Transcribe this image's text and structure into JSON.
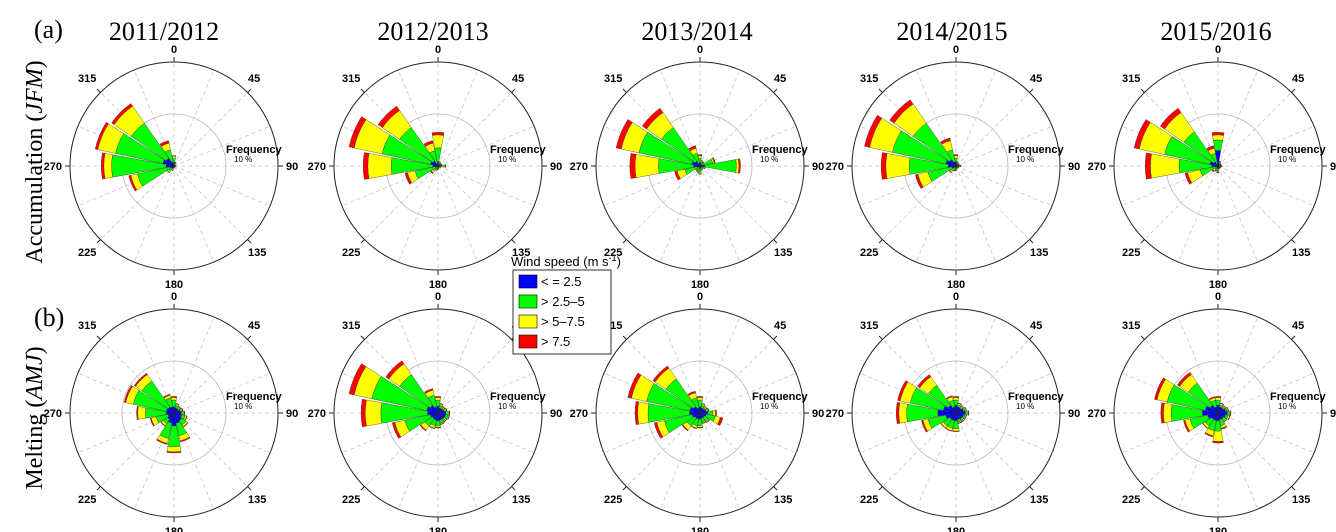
{
  "panels": {
    "a": "(a)",
    "b": "(b)"
  },
  "years": [
    "2011/2012",
    "2012/2013",
    "2013/2014",
    "2014/2015",
    "2015/2016"
  ],
  "rows": [
    {
      "id": "accumulation",
      "label_main": "Accumulation",
      "label_paren": "JFM"
    },
    {
      "id": "melting",
      "label_main": "Melting",
      "label_paren": "AMJ"
    }
  ],
  "compass_labels": [
    "0",
    "45",
    "90",
    "135",
    "180",
    "225",
    "270",
    "315"
  ],
  "frequency_label": "Frequency",
  "frequency_ring_label": "10 %",
  "legend": {
    "title": "Wind speed (m s",
    "title_sup": "-1",
    "title_close": ")",
    "bins": [
      {
        "label": "< = 2.5",
        "color": "#0000ff"
      },
      {
        "label": "> 2.5–5",
        "color": "#00ff00"
      },
      {
        "label": "> 5–7.5",
        "color": "#ffff00"
      },
      {
        "label": "> 7.5",
        "color": "#ff0000"
      }
    ]
  },
  "chart_data": [
    {
      "type": "windrose",
      "title": "2011/2012",
      "season": "Accumulation (JFM)",
      "directions": [
        0,
        22.5,
        45,
        67.5,
        90,
        112.5,
        135,
        157.5,
        180,
        202.5,
        225,
        247.5,
        270,
        292.5,
        315,
        337.5
      ],
      "bins_cumulative_pct": [
        [
          0.6,
          0.3,
          0.2,
          0.1,
          0.2,
          0.1,
          0.1,
          0.1,
          0.2,
          0.3,
          0.5,
          0.8,
          1.5,
          2.2,
          1.8,
          0.8
        ],
        [
          1.5,
          0.5,
          0.3,
          0.2,
          0.3,
          0.2,
          0.2,
          0.2,
          0.3,
          0.6,
          1.2,
          7.2,
          12.0,
          11.5,
          10.0,
          3.2
        ],
        [
          1.9,
          0.7,
          0.4,
          0.3,
          0.4,
          0.3,
          0.3,
          0.3,
          0.4,
          0.8,
          1.5,
          8.5,
          13.5,
          15.0,
          14.0,
          4.5
        ],
        [
          2.0,
          0.8,
          0.4,
          0.3,
          0.4,
          0.3,
          0.3,
          0.3,
          0.4,
          0.9,
          1.6,
          8.9,
          14.0,
          15.5,
          14.6,
          5.0
        ]
      ]
    },
    {
      "type": "windrose",
      "title": "2012/2013",
      "season": "Accumulation (JFM)",
      "directions": [
        0,
        22.5,
        45,
        67.5,
        90,
        112.5,
        135,
        157.5,
        180,
        202.5,
        225,
        247.5,
        270,
        292.5,
        315,
        337.5
      ],
      "bins_cumulative_pct": [
        [
          0.8,
          0.3,
          0.3,
          0.4,
          0.6,
          0.2,
          0.1,
          0.1,
          0.2,
          0.2,
          0.3,
          0.5,
          1.0,
          1.5,
          1.2,
          0.5
        ],
        [
          3.5,
          0.6,
          0.5,
          0.6,
          1.2,
          0.4,
          0.3,
          0.3,
          0.5,
          0.6,
          1.2,
          4.5,
          9.0,
          11.0,
          9.0,
          3.0
        ],
        [
          6.0,
          0.8,
          0.6,
          0.7,
          1.4,
          0.5,
          0.4,
          0.4,
          0.6,
          0.8,
          1.6,
          6.0,
          13.5,
          16.5,
          13.0,
          4.5
        ],
        [
          6.5,
          0.9,
          0.7,
          0.8,
          1.5,
          0.6,
          0.4,
          0.4,
          0.7,
          0.9,
          1.8,
          6.5,
          14.4,
          17.5,
          14.0,
          5.0
        ]
      ]
    },
    {
      "type": "windrose",
      "title": "2013/2014",
      "season": "Accumulation (JFM)",
      "directions": [
        0,
        22.5,
        45,
        67.5,
        90,
        112.5,
        135,
        157.5,
        180,
        202.5,
        225,
        247.5,
        270,
        292.5,
        315,
        337.5
      ],
      "bins_cumulative_pct": [
        [
          0.6,
          0.4,
          0.4,
          0.5,
          0.9,
          0.4,
          0.3,
          0.3,
          0.4,
          0.3,
          0.3,
          0.5,
          1.2,
          1.6,
          1.1,
          0.5
        ],
        [
          1.5,
          0.8,
          0.8,
          2.5,
          7.0,
          0.8,
          0.5,
          0.6,
          1.2,
          1.0,
          0.8,
          3.0,
          8.0,
          12.0,
          9.0,
          2.5
        ],
        [
          2.0,
          1.0,
          0.9,
          2.8,
          7.5,
          1.0,
          0.6,
          0.8,
          1.5,
          1.2,
          1.0,
          4.5,
          12.5,
          15.5,
          12.5,
          3.5
        ],
        [
          2.2,
          1.1,
          1.0,
          3.0,
          7.8,
          1.1,
          0.7,
          0.9,
          1.6,
          1.3,
          1.1,
          5.0,
          13.5,
          16.5,
          13.5,
          4.0
        ]
      ]
    },
    {
      "type": "windrose",
      "title": "2014/2015",
      "season": "Accumulation (JFM)",
      "directions": [
        0,
        22.5,
        45,
        67.5,
        90,
        112.5,
        135,
        157.5,
        180,
        202.5,
        225,
        247.5,
        270,
        292.5,
        315,
        337.5
      ],
      "bins_cumulative_pct": [
        [
          0.8,
          0.4,
          0.3,
          0.3,
          0.5,
          0.3,
          0.2,
          0.2,
          0.3,
          0.3,
          0.4,
          0.8,
          1.5,
          2.0,
          1.5,
          0.8
        ],
        [
          1.5,
          0.6,
          0.5,
          0.5,
          0.8,
          0.4,
          0.3,
          0.3,
          0.6,
          0.7,
          1.2,
          5.5,
          9.0,
          12.5,
          10.0,
          3.2
        ],
        [
          2.0,
          0.8,
          0.6,
          0.6,
          0.9,
          0.5,
          0.4,
          0.4,
          0.8,
          0.9,
          1.5,
          7.5,
          13.5,
          17.0,
          14.5,
          5.0
        ],
        [
          2.2,
          0.9,
          0.7,
          0.7,
          1.0,
          0.6,
          0.5,
          0.5,
          0.9,
          1.0,
          1.6,
          8.0,
          14.4,
          18.0,
          15.5,
          5.5
        ]
      ]
    },
    {
      "type": "windrose",
      "title": "2015/2016",
      "season": "Accumulation (JFM)",
      "directions": [
        0,
        22.5,
        45,
        67.5,
        90,
        112.5,
        135,
        157.5,
        180,
        202.5,
        225,
        247.5,
        270,
        292.5,
        315,
        337.5
      ],
      "bins_cumulative_pct": [
        [
          3.0,
          0.5,
          0.3,
          0.3,
          0.4,
          0.3,
          0.2,
          0.3,
          0.5,
          0.4,
          0.3,
          0.5,
          1.2,
          1.6,
          1.0,
          0.5
        ],
        [
          5.0,
          0.8,
          0.5,
          0.4,
          0.6,
          0.4,
          0.3,
          0.4,
          1.0,
          0.8,
          0.8,
          3.5,
          7.5,
          10.5,
          8.0,
          2.5
        ],
        [
          6.0,
          0.9,
          0.6,
          0.5,
          0.7,
          0.5,
          0.4,
          0.5,
          1.2,
          1.0,
          1.2,
          6.0,
          13.0,
          15.5,
          12.5,
          3.5
        ],
        [
          6.5,
          1.0,
          0.7,
          0.6,
          0.8,
          0.6,
          0.5,
          0.6,
          1.3,
          1.1,
          1.4,
          6.5,
          14.0,
          16.5,
          13.5,
          4.0
        ]
      ]
    },
    {
      "type": "windrose",
      "title": "2011/2012",
      "season": "Melting (AMJ)",
      "directions": [
        0,
        22.5,
        45,
        67.5,
        90,
        112.5,
        135,
        157.5,
        180,
        202.5,
        225,
        247.5,
        270,
        292.5,
        315,
        337.5
      ],
      "bins_cumulative_pct": [
        [
          1.2,
          1.0,
          1.0,
          1.2,
          1.4,
          1.5,
          1.8,
          2.0,
          2.5,
          2.0,
          1.5,
          1.2,
          1.5,
          1.5,
          1.4,
          1.2
        ],
        [
          2.5,
          1.5,
          1.3,
          1.5,
          1.8,
          2.2,
          2.8,
          4.5,
          6.5,
          5.0,
          2.5,
          3.5,
          5.5,
          8.0,
          7.5,
          3.0
        ],
        [
          3.0,
          1.8,
          1.5,
          1.7,
          2.0,
          2.5,
          3.2,
          5.5,
          7.5,
          6.0,
          3.0,
          4.5,
          7.0,
          9.5,
          9.0,
          3.5
        ],
        [
          3.2,
          1.9,
          1.6,
          1.8,
          2.1,
          2.6,
          3.3,
          5.7,
          7.7,
          6.2,
          3.1,
          4.7,
          7.2,
          9.8,
          9.3,
          3.7
        ]
      ]
    },
    {
      "type": "windrose",
      "title": "2012/2013",
      "season": "Melting (AMJ)",
      "directions": [
        0,
        22.5,
        45,
        67.5,
        90,
        112.5,
        135,
        157.5,
        180,
        202.5,
        225,
        247.5,
        270,
        292.5,
        315,
        337.5
      ],
      "bins_cumulative_pct": [
        [
          1.3,
          1.0,
          1.0,
          1.2,
          1.5,
          1.5,
          1.4,
          1.4,
          1.5,
          1.4,
          1.3,
          1.5,
          2.0,
          2.2,
          1.8,
          1.2
        ],
        [
          2.5,
          1.5,
          1.3,
          1.5,
          2.0,
          2.0,
          1.8,
          2.0,
          2.5,
          2.5,
          3.0,
          6.5,
          11.0,
          13.0,
          9.0,
          3.5
        ],
        [
          3.0,
          1.8,
          1.5,
          1.7,
          2.2,
          2.2,
          2.0,
          2.2,
          2.8,
          3.0,
          4.0,
          8.5,
          14.0,
          16.5,
          11.5,
          4.5
        ],
        [
          3.2,
          1.9,
          1.6,
          1.8,
          2.3,
          2.3,
          2.1,
          2.3,
          2.9,
          3.1,
          4.2,
          9.0,
          14.8,
          17.5,
          12.2,
          4.8
        ]
      ]
    },
    {
      "type": "windrose",
      "title": "2013/2014",
      "season": "Melting (AMJ)",
      "directions": [
        0,
        22.5,
        45,
        67.5,
        90,
        112.5,
        135,
        157.5,
        180,
        202.5,
        225,
        247.5,
        270,
        292.5,
        315,
        337.5
      ],
      "bins_cumulative_pct": [
        [
          1.2,
          1.0,
          1.0,
          1.2,
          1.5,
          1.2,
          1.0,
          1.0,
          1.2,
          1.2,
          1.2,
          1.5,
          2.0,
          2.0,
          1.5,
          1.0
        ],
        [
          2.5,
          1.5,
          1.3,
          1.5,
          2.5,
          3.0,
          2.0,
          1.8,
          2.5,
          2.5,
          3.0,
          7.0,
          10.0,
          10.5,
          8.0,
          3.0
        ],
        [
          3.0,
          1.8,
          1.5,
          1.7,
          3.0,
          4.0,
          2.2,
          2.0,
          2.8,
          3.0,
          4.0,
          8.5,
          12.0,
          13.5,
          10.5,
          4.0
        ],
        [
          3.2,
          1.9,
          1.6,
          1.8,
          3.2,
          4.5,
          2.3,
          2.1,
          2.9,
          3.1,
          4.2,
          9.0,
          12.5,
          14.2,
          11.0,
          4.3
        ]
      ]
    },
    {
      "type": "windrose",
      "title": "2014/2015",
      "season": "Melting (AMJ)",
      "directions": [
        0,
        22.5,
        45,
        67.5,
        90,
        112.5,
        135,
        157.5,
        180,
        202.5,
        225,
        247.5,
        270,
        292.5,
        315,
        337.5
      ],
      "bins_cumulative_pct": [
        [
          1.5,
          1.2,
          1.2,
          1.5,
          1.8,
          1.5,
          1.4,
          1.3,
          1.5,
          1.5,
          1.5,
          2.0,
          3.5,
          2.5,
          1.8,
          1.2
        ],
        [
          2.5,
          1.6,
          1.5,
          1.8,
          2.2,
          1.8,
          1.8,
          1.8,
          3.0,
          3.0,
          3.0,
          5.5,
          9.5,
          9.0,
          6.5,
          2.5
        ],
        [
          3.0,
          1.9,
          1.7,
          2.0,
          2.4,
          2.0,
          2.0,
          2.0,
          3.5,
          3.5,
          3.5,
          6.5,
          11.0,
          11.0,
          8.5,
          3.2
        ],
        [
          3.2,
          2.0,
          1.8,
          2.1,
          2.5,
          2.1,
          2.1,
          2.1,
          3.6,
          3.6,
          3.6,
          6.8,
          11.5,
          11.5,
          9.0,
          3.4
        ]
      ]
    },
    {
      "type": "windrose",
      "title": "2015/2016",
      "season": "Melting (AMJ)",
      "directions": [
        0,
        22.5,
        45,
        67.5,
        90,
        112.5,
        135,
        157.5,
        180,
        202.5,
        225,
        247.5,
        270,
        292.5,
        315,
        337.5
      ],
      "bins_cumulative_pct": [
        [
          1.5,
          1.2,
          1.2,
          1.5,
          1.8,
          1.5,
          1.3,
          1.3,
          1.5,
          1.5,
          1.5,
          2.0,
          3.0,
          2.5,
          1.8,
          1.2
        ],
        [
          2.5,
          1.6,
          1.5,
          1.8,
          2.2,
          2.0,
          1.8,
          2.5,
          3.5,
          3.5,
          3.0,
          5.5,
          9.0,
          10.0,
          7.0,
          2.5
        ],
        [
          3.0,
          1.9,
          1.7,
          2.0,
          2.4,
          2.3,
          2.0,
          3.0,
          5.5,
          4.5,
          3.5,
          6.5,
          10.5,
          12.0,
          9.0,
          3.0
        ],
        [
          3.2,
          2.0,
          1.8,
          2.1,
          2.5,
          2.4,
          2.1,
          3.2,
          5.8,
          4.7,
          3.6,
          6.8,
          11.0,
          12.5,
          9.5,
          3.2
        ]
      ]
    }
  ]
}
